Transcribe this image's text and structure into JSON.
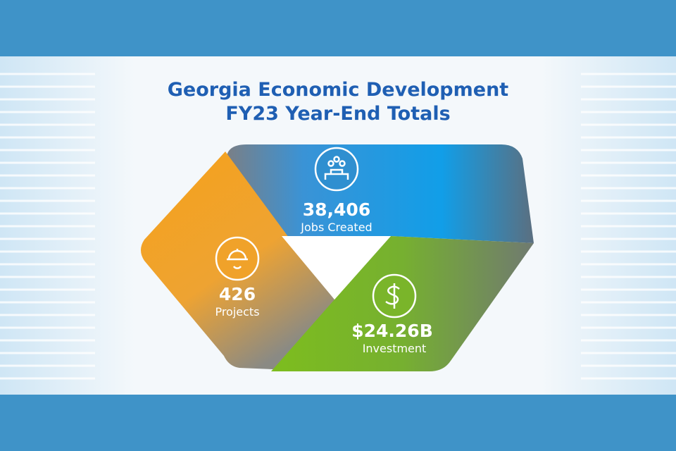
{
  "title": {
    "line1": "Georgia Economic Development",
    "line2": "FY23 Year-End Totals"
  },
  "stats": [
    {
      "value": "38,406",
      "label": "Jobs Created"
    },
    {
      "value": "426",
      "label": "Projects"
    },
    {
      "value": "$24.26B",
      "label": "Investment"
    }
  ]
}
